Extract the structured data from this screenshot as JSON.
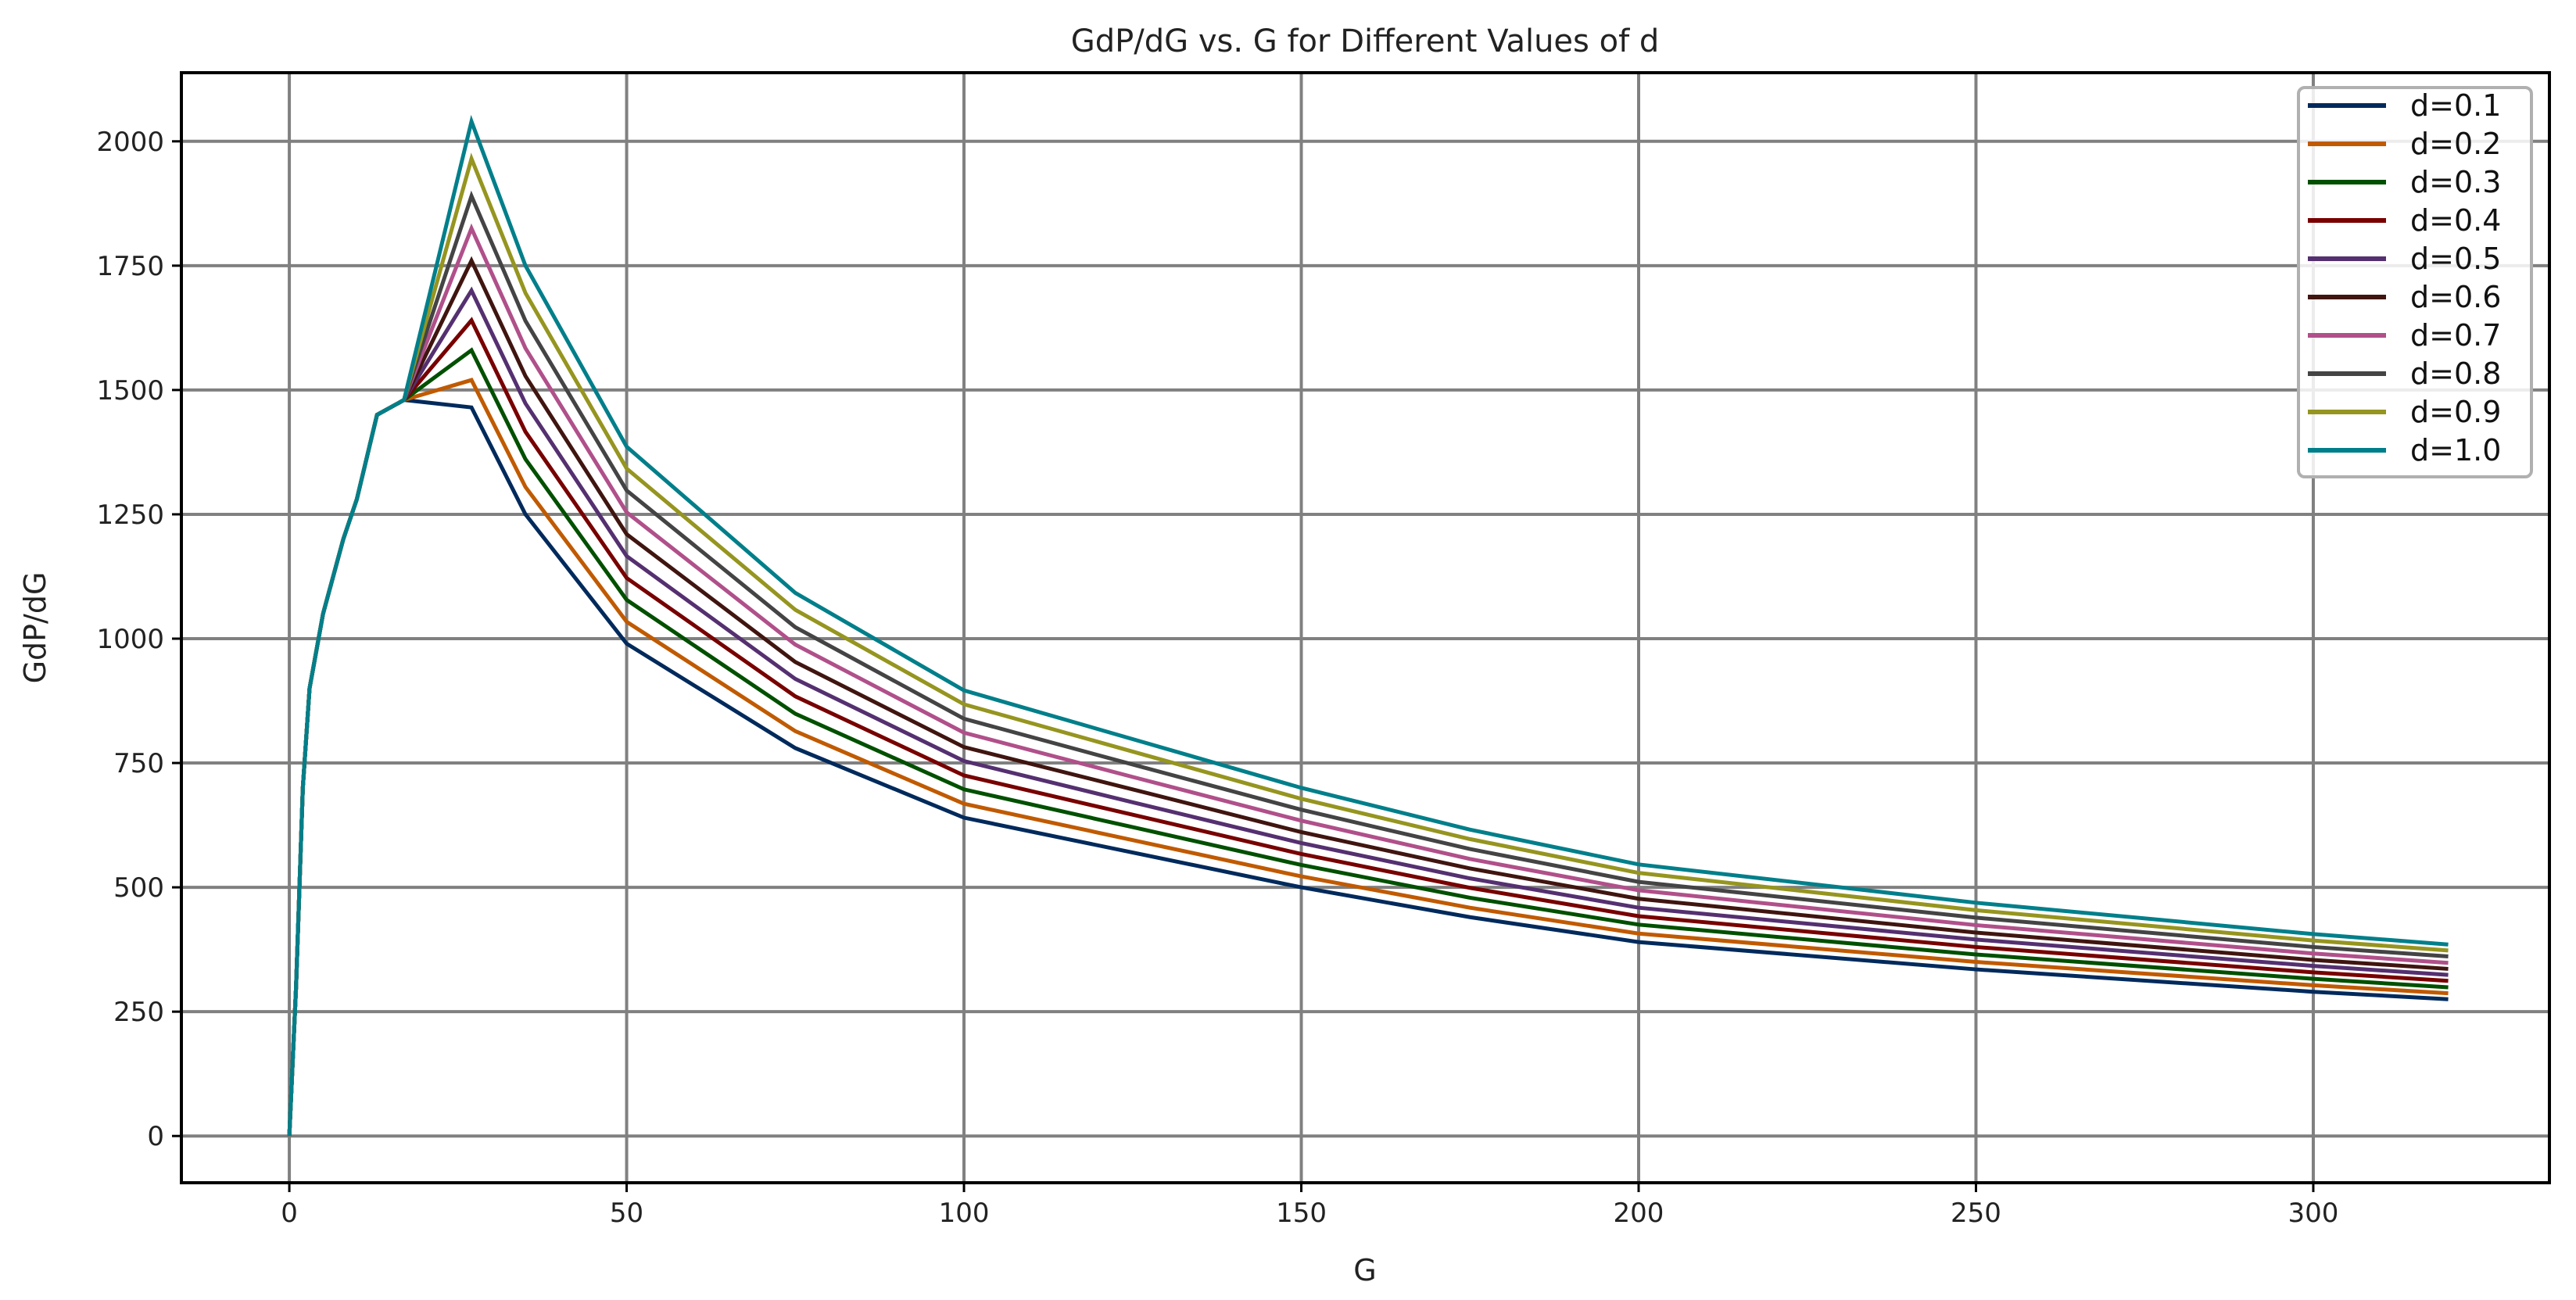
{
  "chart_data": {
    "type": "line",
    "title": "GdP/dG vs. G for Different Values of d",
    "xlabel": "G",
    "ylabel": "GdP/dG",
    "xlim": [
      -16,
      335
    ],
    "ylim": [
      -94,
      2138
    ],
    "xticks": [
      0,
      50,
      100,
      150,
      200,
      250,
      300
    ],
    "yticks": [
      0,
      250,
      500,
      750,
      1000,
      1250,
      1500,
      1750,
      2000
    ],
    "grid": true,
    "legend_position": "top-right",
    "x": [
      0,
      1,
      2,
      3,
      5,
      8,
      10,
      13,
      17,
      27,
      35,
      50,
      75,
      100,
      125,
      150,
      175,
      200,
      250,
      300,
      320
    ],
    "series": [
      {
        "name": "d=0.1",
        "color": "#002a5c",
        "values": [
          0,
          300,
          700,
          900,
          1050,
          1200,
          1280,
          1450,
          1480,
          1465,
          1250,
          990,
          780,
          640,
          570,
          500,
          440,
          390,
          335,
          290,
          275
        ]
      },
      {
        "name": "d=0.2",
        "color": "#c05a00",
        "values": [
          0,
          300,
          700,
          900,
          1050,
          1200,
          1280,
          1450,
          1480,
          1520,
          1305,
          1034,
          814,
          668,
          595,
          522,
          459,
          407,
          350,
          303,
          287
        ]
      },
      {
        "name": "d=0.3",
        "color": "#005000",
        "values": [
          0,
          300,
          700,
          900,
          1050,
          1200,
          1280,
          1450,
          1480,
          1580,
          1361,
          1078,
          849,
          697,
          621,
          545,
          479,
          425,
          365,
          316,
          299
        ]
      },
      {
        "name": "d=0.4",
        "color": "#780000",
        "values": [
          0,
          300,
          700,
          900,
          1050,
          1200,
          1280,
          1450,
          1480,
          1640,
          1416,
          1122,
          884,
          725,
          646,
          567,
          499,
          442,
          380,
          329,
          312
        ]
      },
      {
        "name": "d=0.5",
        "color": "#553070",
        "values": [
          0,
          300,
          700,
          900,
          1050,
          1200,
          1280,
          1450,
          1480,
          1700,
          1473,
          1166,
          919,
          754,
          671,
          589,
          518,
          459,
          395,
          342,
          324
        ]
      },
      {
        "name": "d=0.6",
        "color": "#401510",
        "values": [
          0,
          300,
          700,
          900,
          1050,
          1200,
          1280,
          1450,
          1480,
          1760,
          1528,
          1210,
          953,
          782,
          697,
          611,
          538,
          477,
          409,
          354,
          336
        ]
      },
      {
        "name": "d=0.7",
        "color": "#b0508a",
        "values": [
          0,
          300,
          700,
          900,
          1050,
          1200,
          1280,
          1450,
          1480,
          1825,
          1584,
          1254,
          988,
          811,
          722,
          634,
          557,
          494,
          424,
          367,
          348
        ]
      },
      {
        "name": "d=0.8",
        "color": "#444444",
        "values": [
          0,
          300,
          700,
          900,
          1050,
          1200,
          1280,
          1450,
          1480,
          1890,
          1639,
          1298,
          1023,
          839,
          747,
          656,
          577,
          511,
          439,
          380,
          361
        ]
      },
      {
        "name": "d=0.9",
        "color": "#959520",
        "values": [
          0,
          300,
          700,
          900,
          1050,
          1200,
          1280,
          1450,
          1480,
          1965,
          1695,
          1342,
          1058,
          868,
          773,
          678,
          597,
          529,
          454,
          393,
          373
        ]
      },
      {
        "name": "d=1.0",
        "color": "#007f8a",
        "values": [
          0,
          300,
          700,
          900,
          1050,
          1200,
          1280,
          1450,
          1480,
          2040,
          1750,
          1386,
          1092,
          896,
          798,
          700,
          616,
          546,
          469,
          406,
          385
        ]
      }
    ]
  }
}
